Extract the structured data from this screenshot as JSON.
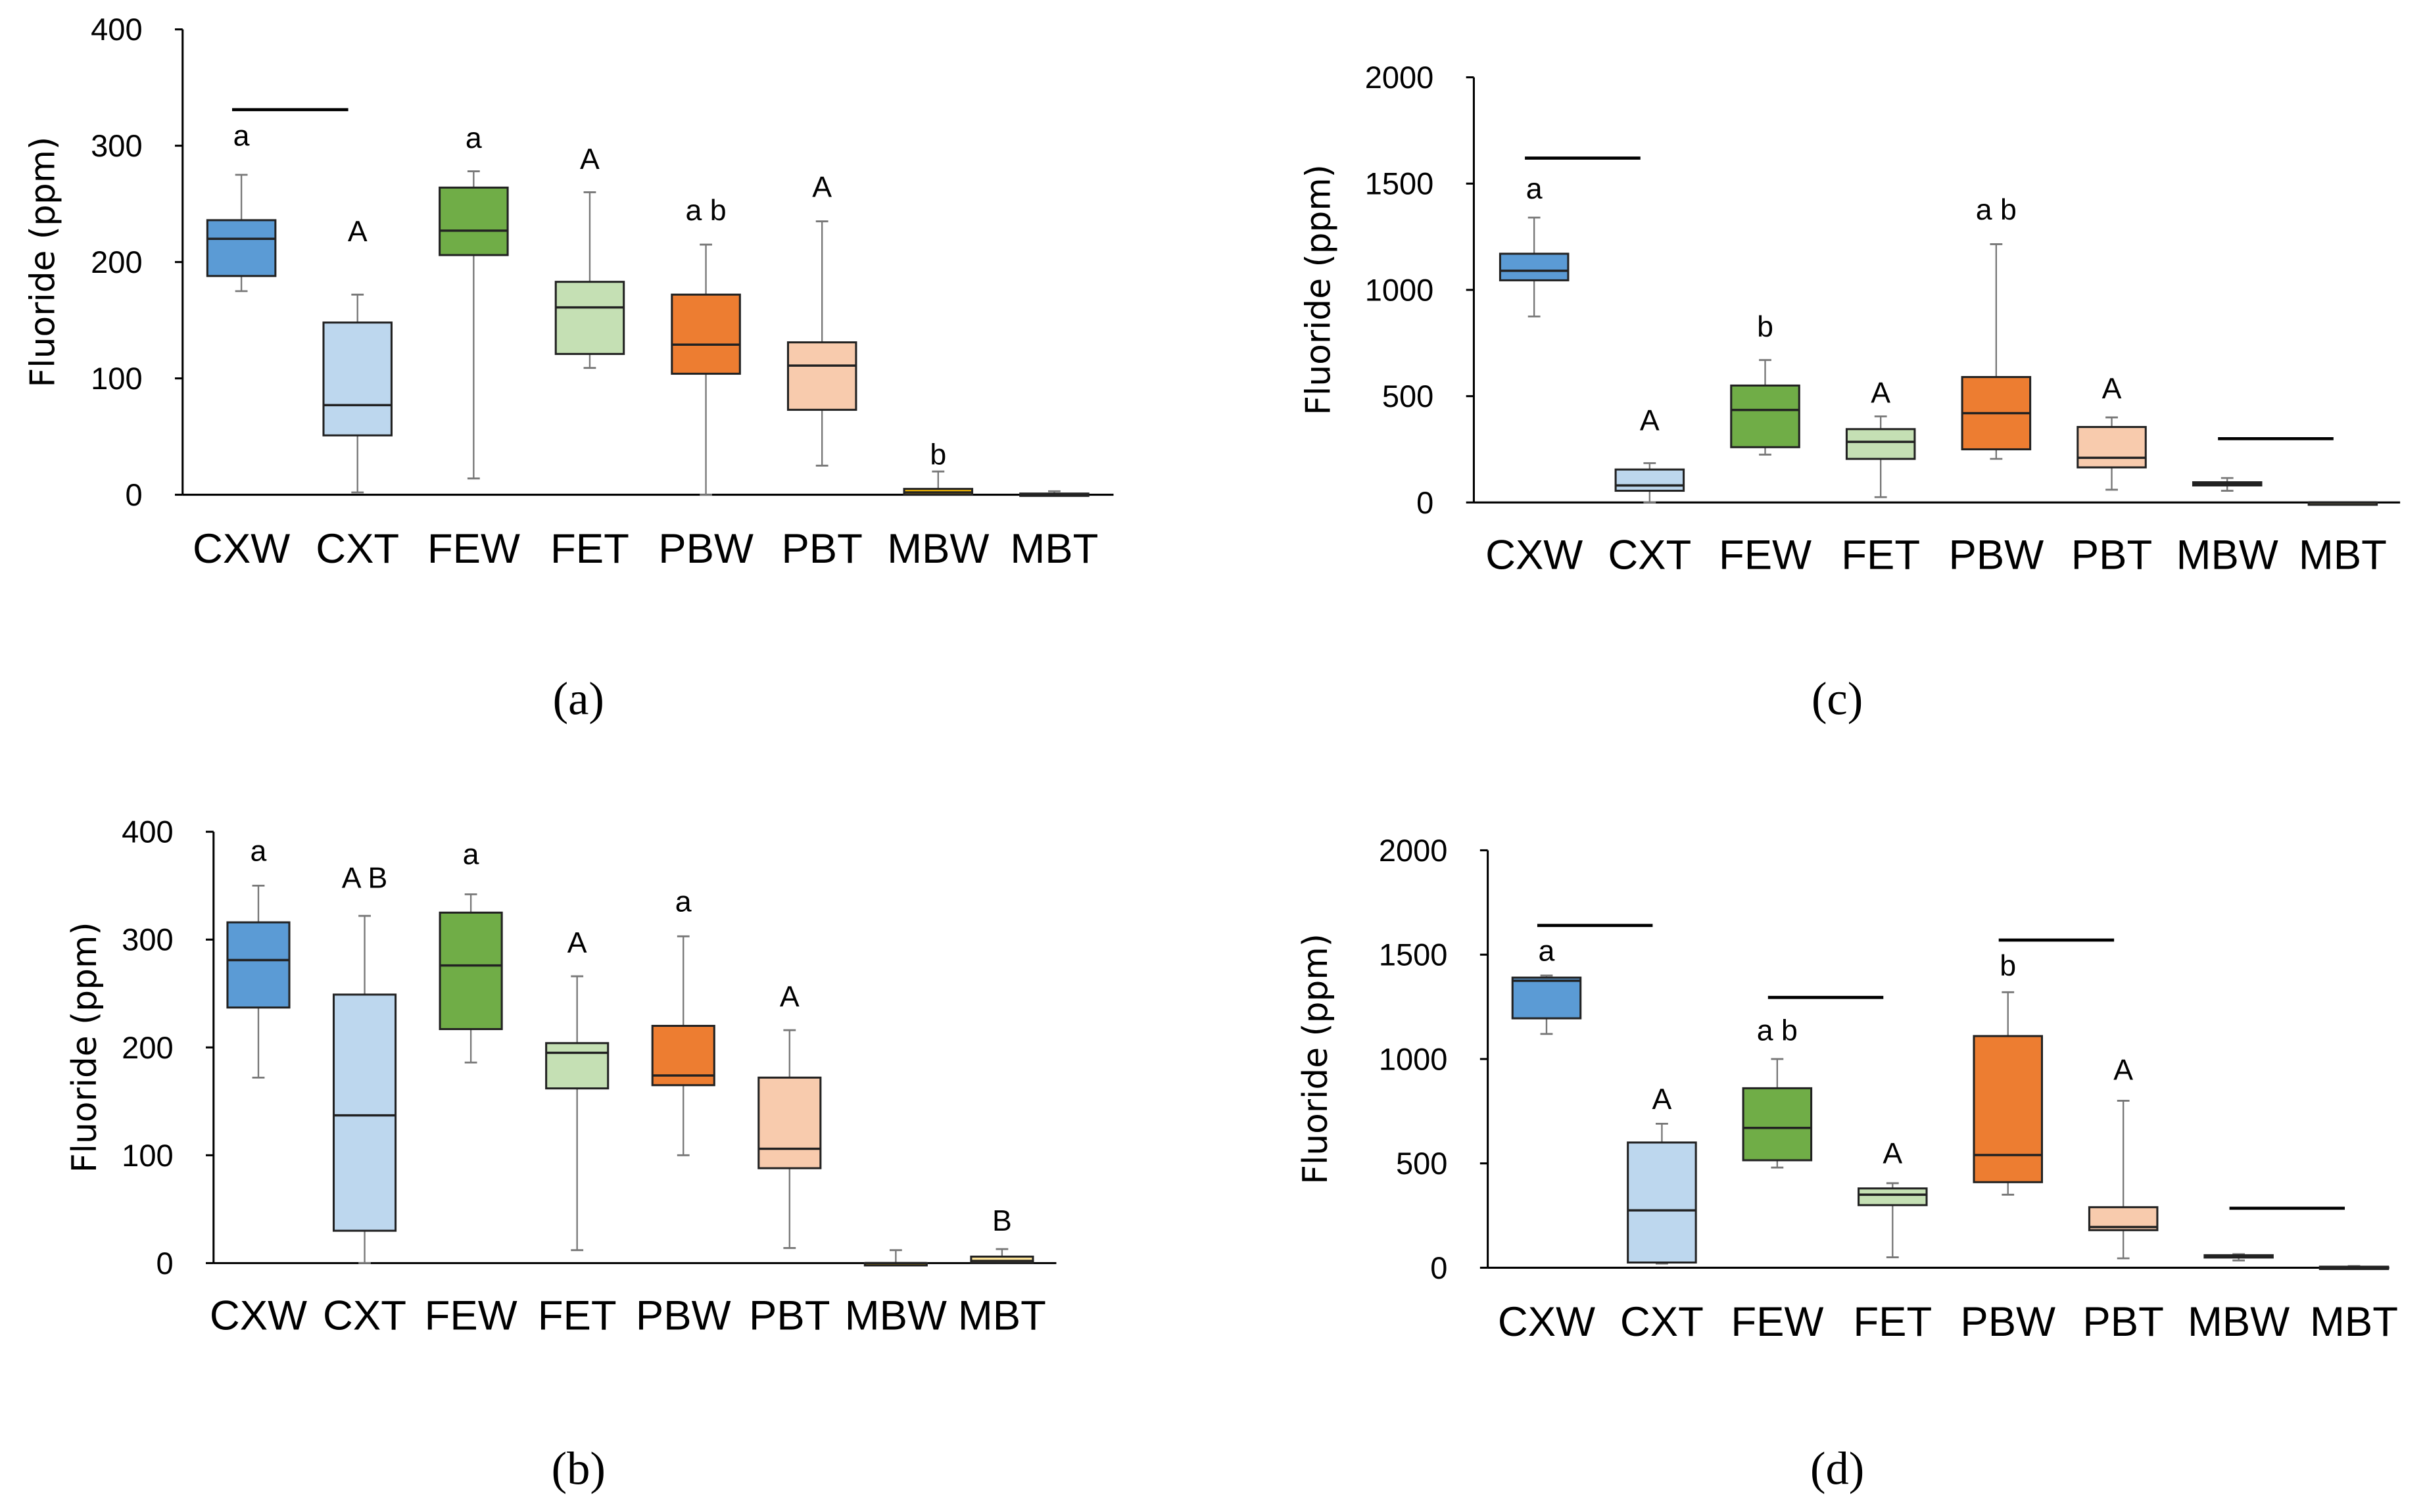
{
  "chart_data": [
    {
      "id": "a",
      "type": "box",
      "panel_label": "(a)",
      "panel_letter": "a",
      "ylabel": "Fluoride (ppm)",
      "ylim": [
        0,
        400
      ],
      "yticks": [
        0,
        100,
        200,
        300,
        400
      ],
      "categories": [
        "CXW",
        "CXT",
        "FEW",
        "FET",
        "PBW",
        "PBT",
        "MBW",
        "MBT"
      ],
      "boxes": [
        {
          "min": 175,
          "q1": 188,
          "median": 220,
          "q3": 236,
          "max": 275,
          "label": "a",
          "label_y": 300
        },
        {
          "min": 2,
          "q1": 51,
          "median": 77,
          "q3": 148,
          "max": 172,
          "label": "A",
          "label_y": 218
        },
        {
          "min": 14,
          "q1": 206,
          "median": 227,
          "q3": 264,
          "max": 278,
          "label": "a",
          "label_y": 298
        },
        {
          "min": 109,
          "q1": 121,
          "median": 161,
          "q3": 183,
          "max": 260,
          "label": "A",
          "label_y": 280
        },
        {
          "min": 0,
          "q1": 104,
          "median": 129,
          "q3": 172,
          "max": 215,
          "label": "a b",
          "label_y": 236
        },
        {
          "min": 25,
          "q1": 73,
          "median": 111,
          "q3": 131,
          "max": 235,
          "label": "A",
          "label_y": 256
        },
        {
          "min": 0,
          "q1": 0,
          "median": 2,
          "q3": 5,
          "max": 20,
          "label": "b",
          "label_y": 26
        },
        {
          "min": 0,
          "q1": 0,
          "median": 0,
          "q3": 1,
          "max": 3,
          "label": "",
          "label_y": 0
        }
      ],
      "significance_bars": [
        {
          "from": "CXW",
          "to": "CXT",
          "value": 331
        }
      ]
    },
    {
      "id": "b",
      "type": "box",
      "panel_label": "(b)",
      "panel_letter": "b",
      "ylabel": "Fluoride (ppm)",
      "ylim": [
        0,
        400
      ],
      "yticks": [
        0,
        100,
        200,
        300,
        400
      ],
      "categories": [
        "CXW",
        "CXT",
        "FEW",
        "FET",
        "PBW",
        "PBT",
        "MBW",
        "MBT"
      ],
      "boxes": [
        {
          "min": 172,
          "q1": 237,
          "median": 281,
          "q3": 316,
          "max": 350,
          "label": "a",
          "label_y": 373
        },
        {
          "min": 0,
          "q1": 30,
          "median": 137,
          "q3": 249,
          "max": 322,
          "label": "A B",
          "label_y": 348
        },
        {
          "min": 186,
          "q1": 217,
          "median": 276,
          "q3": 325,
          "max": 342,
          "label": "a",
          "label_y": 370
        },
        {
          "min": 12,
          "q1": 162,
          "median": 195,
          "q3": 204,
          "max": 266,
          "label": "A",
          "label_y": 288
        },
        {
          "min": 100,
          "q1": 165,
          "median": 174,
          "q3": 220,
          "max": 303,
          "label": "a",
          "label_y": 326
        },
        {
          "min": 14,
          "q1": 88,
          "median": 106,
          "q3": 172,
          "max": 216,
          "label": "A",
          "label_y": 238
        },
        {
          "min": 0,
          "q1": 0,
          "median": 0,
          "q3": 0,
          "max": 12,
          "label": "",
          "label_y": 0
        },
        {
          "min": 0,
          "q1": 0,
          "median": 2,
          "q3": 6,
          "max": 13,
          "label": "B",
          "label_y": 30
        }
      ],
      "significance_bars": []
    },
    {
      "id": "c",
      "type": "box",
      "panel_label": "(c)",
      "panel_letter": "c",
      "ylabel": "Fluoride (ppm)",
      "ylim": [
        0,
        2000
      ],
      "yticks": [
        0,
        500,
        1000,
        1500,
        2000
      ],
      "categories": [
        "CXW",
        "CXT",
        "FEW",
        "FET",
        "PBW",
        "PBT",
        "MBW",
        "MBT"
      ],
      "boxes": [
        {
          "min": 875,
          "q1": 1045,
          "median": 1090,
          "q3": 1170,
          "max": 1340,
          "label": "a",
          "label_y": 1430
        },
        {
          "min": 0,
          "q1": 55,
          "median": 80,
          "q3": 155,
          "max": 185,
          "label": "A",
          "label_y": 340
        },
        {
          "min": 225,
          "q1": 260,
          "median": 435,
          "q3": 550,
          "max": 670,
          "label": "b",
          "label_y": 780
        },
        {
          "min": 25,
          "q1": 205,
          "median": 285,
          "q3": 345,
          "max": 405,
          "label": "A",
          "label_y": 470
        },
        {
          "min": 205,
          "q1": 250,
          "median": 420,
          "q3": 590,
          "max": 1215,
          "label": "a b",
          "label_y": 1330
        },
        {
          "min": 60,
          "q1": 165,
          "median": 210,
          "q3": 355,
          "max": 400,
          "label": "A",
          "label_y": 490
        },
        {
          "min": 55,
          "q1": 80,
          "median": 90,
          "q3": 95,
          "max": 115,
          "label": "",
          "label_y": 0
        },
        {
          "min": 0,
          "q1": 0,
          "median": 0,
          "q3": 0,
          "max": 0,
          "label": "",
          "label_y": 0
        }
      ],
      "significance_bars": [
        {
          "from": "CXW",
          "to": "CXT",
          "value": 1620
        },
        {
          "from": "MBW",
          "to": "MBT",
          "value": 300
        }
      ]
    },
    {
      "id": "d",
      "type": "box",
      "panel_label": "(d)",
      "panel_letter": "d",
      "ylabel": "Fluoride (ppm)",
      "ylim": [
        0,
        2000
      ],
      "yticks": [
        0,
        500,
        1000,
        1500,
        2000
      ],
      "categories": [
        "CXW",
        "CXT",
        "FEW",
        "FET",
        "PBW",
        "PBT",
        "MBW",
        "MBT"
      ],
      "boxes": [
        {
          "min": 1120,
          "q1": 1195,
          "median": 1375,
          "q3": 1390,
          "max": 1400,
          "label": "a",
          "label_y": 1470
        },
        {
          "min": 20,
          "q1": 25,
          "median": 275,
          "q3": 600,
          "max": 690,
          "label": "A",
          "label_y": 760
        },
        {
          "min": 480,
          "q1": 515,
          "median": 670,
          "q3": 860,
          "max": 1000,
          "label": "a b",
          "label_y": 1090
        },
        {
          "min": 50,
          "q1": 300,
          "median": 350,
          "q3": 380,
          "max": 405,
          "label": "A",
          "label_y": 500
        },
        {
          "min": 350,
          "q1": 410,
          "median": 540,
          "q3": 1110,
          "max": 1320,
          "label": "b",
          "label_y": 1400
        },
        {
          "min": 45,
          "q1": 180,
          "median": 195,
          "q3": 290,
          "max": 800,
          "label": "A",
          "label_y": 900
        },
        {
          "min": 35,
          "q1": 50,
          "median": 55,
          "q3": 60,
          "max": 65,
          "label": "",
          "label_y": 0
        },
        {
          "min": 0,
          "q1": 0,
          "median": 3,
          "q3": 5,
          "max": 8,
          "label": "",
          "label_y": 0
        }
      ],
      "significance_bars": [
        {
          "from": "CXW",
          "to": "CXT",
          "value": 1640
        },
        {
          "from": "FEW",
          "to": "FET",
          "value": 1295
        },
        {
          "from": "PBW",
          "to": "PBT",
          "value": 1570
        },
        {
          "from": "MBW",
          "to": "MBT",
          "value": 285
        }
      ]
    }
  ],
  "colors": {
    "CXW": "#5b9bd5",
    "CXT": "#bdd7ee",
    "FEW": "#70ad47",
    "FET": "#c5e0b4",
    "PBW": "#ed7d31",
    "PBT": "#f8cbad",
    "MBW": "#ffc000",
    "MBT": "#ffe699"
  }
}
